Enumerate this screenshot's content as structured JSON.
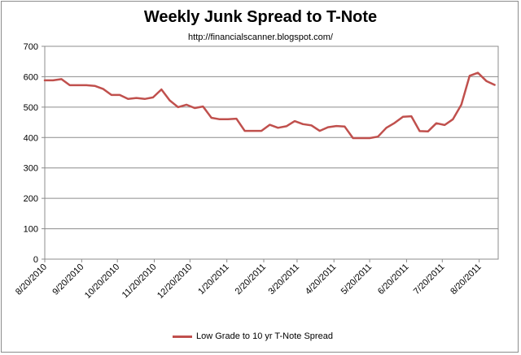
{
  "chart_data": {
    "type": "line",
    "title": "Weekly Junk Spread to T-Note",
    "subtitle": "http://financialscanner.blogspot.com/",
    "xlabel": "",
    "ylabel": "",
    "ylim": [
      0,
      700
    ],
    "yticks": [
      0,
      100,
      200,
      300,
      400,
      500,
      600,
      700
    ],
    "grid": true,
    "legend": "bottom",
    "xtick_labels": [
      "8/20/2010",
      "9/20/2010",
      "10/20/2010",
      "11/20/2010",
      "12/20/2010",
      "1/20/2011",
      "2/20/2011",
      "3/20/2011",
      "4/20/2011",
      "5/20/2011",
      "6/20/2011",
      "7/20/2011",
      "8/20/2011"
    ],
    "x": [
      "2010-08-20",
      "2010-08-27",
      "2010-09-03",
      "2010-09-10",
      "2010-09-17",
      "2010-09-24",
      "2010-10-01",
      "2010-10-08",
      "2010-10-15",
      "2010-10-22",
      "2010-10-29",
      "2010-11-05",
      "2010-11-12",
      "2010-11-19",
      "2010-11-26",
      "2010-12-03",
      "2010-12-10",
      "2010-12-17",
      "2010-12-24",
      "2010-12-31",
      "2011-01-07",
      "2011-01-14",
      "2011-01-21",
      "2011-01-28",
      "2011-02-04",
      "2011-02-11",
      "2011-02-18",
      "2011-02-25",
      "2011-03-04",
      "2011-03-11",
      "2011-03-18",
      "2011-03-25",
      "2011-04-01",
      "2011-04-08",
      "2011-04-15",
      "2011-04-22",
      "2011-04-29",
      "2011-05-06",
      "2011-05-13",
      "2011-05-20",
      "2011-05-27",
      "2011-06-03",
      "2011-06-10",
      "2011-06-17",
      "2011-06-24",
      "2011-07-01",
      "2011-07-08",
      "2011-07-15",
      "2011-07-22",
      "2011-07-29",
      "2011-08-05",
      "2011-08-12",
      "2011-08-19",
      "2011-08-26",
      "2011-09-02"
    ],
    "series": [
      {
        "name": "Low Grade to 10 yr T-Note Spread",
        "color": "#c0504d",
        "values": [
          588,
          588,
          592,
          572,
          572,
          572,
          570,
          560,
          540,
          540,
          527,
          530,
          527,
          532,
          558,
          522,
          500,
          508,
          497,
          502,
          465,
          460,
          460,
          462,
          422,
          422,
          422,
          442,
          432,
          437,
          454,
          444,
          440,
          422,
          434,
          438,
          436,
          398,
          398,
          398,
          403,
          432,
          448,
          468,
          470,
          421,
          420,
          447,
          441,
          460,
          508,
          603,
          613,
          586,
          573
        ]
      }
    ]
  }
}
